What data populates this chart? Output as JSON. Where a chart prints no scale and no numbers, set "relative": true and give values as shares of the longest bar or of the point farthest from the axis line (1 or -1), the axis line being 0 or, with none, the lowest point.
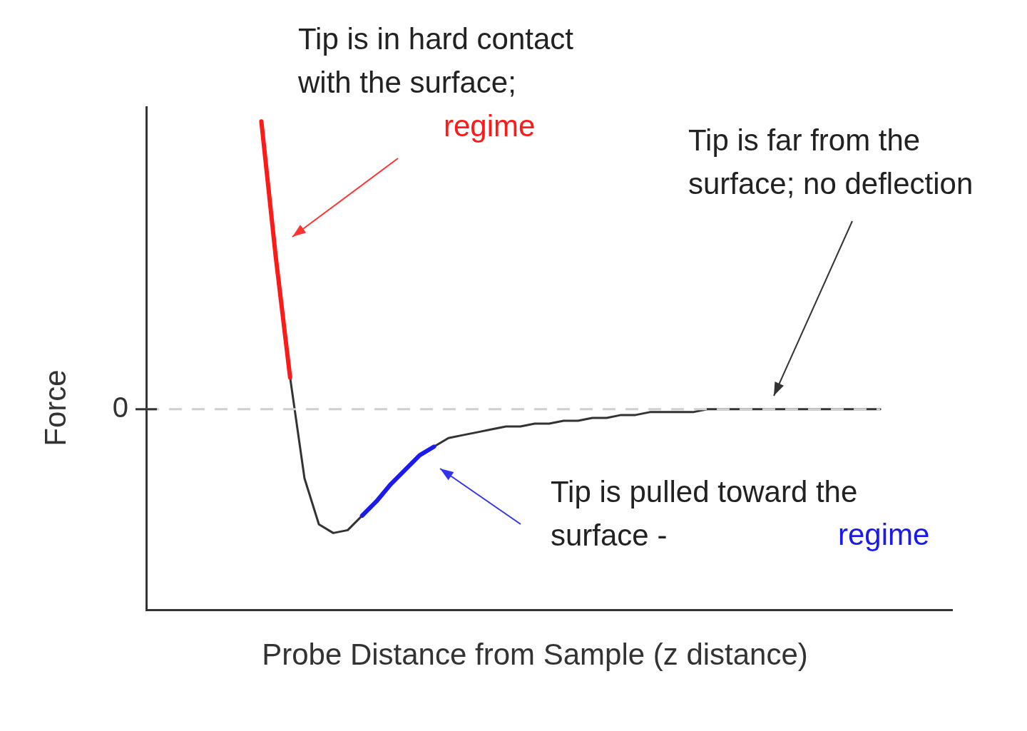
{
  "chart_data": {
    "type": "line",
    "relative": true,
    "xlabel": "Probe Distance from Sample (z distance)",
    "ylabel": "Force",
    "categories": [
      null,
      null,
      null,
      null,
      null,
      null,
      null,
      null,
      null,
      null,
      null,
      null,
      null,
      null,
      null,
      null,
      null,
      null,
      null,
      null,
      null,
      null,
      null,
      null,
      null,
      null,
      null,
      null,
      null,
      null,
      null,
      null,
      null,
      null,
      null,
      null,
      null,
      null,
      null,
      null,
      null,
      null,
      null,
      null,
      null,
      null,
      null,
      null,
      null,
      null,
      null,
      null,
      null,
      null,
      null,
      null,
      null
    ],
    "series": [
      {
        "color": "#333333",
        "values": [
          null,
          null,
          null,
          null,
          null,
          null,
          null,
          null,
          null,
          null,
          0.11,
          -0.24,
          -0.4,
          -0.43,
          -0.42,
          -0.37,
          null,
          null,
          null,
          null,
          -0.13,
          -0.1,
          -0.09,
          -0.08,
          -0.07,
          -0.06,
          -0.06,
          -0.05,
          -0.05,
          -0.04,
          -0.04,
          -0.03,
          -0.03,
          -0.02,
          -0.02,
          -0.01,
          -0.01,
          -0.01,
          -0.01,
          0,
          0,
          0,
          0,
          0,
          0,
          0,
          0,
          0,
          0,
          0,
          0,
          0,
          null,
          null,
          null,
          null,
          null
        ]
      },
      {
        "color": "#ff1a1a",
        "values": [
          null,
          null,
          null,
          null,
          null,
          null,
          null,
          null,
          1.0,
          0.53,
          0.11,
          null,
          null,
          null,
          null,
          null,
          null,
          null,
          null,
          null,
          null,
          null,
          null,
          null,
          null,
          null,
          null,
          null,
          null,
          null,
          null,
          null,
          null,
          null,
          null,
          null,
          null,
          null,
          null,
          null,
          null,
          null,
          null,
          null,
          null,
          null,
          null,
          null,
          null,
          null,
          null,
          null,
          null,
          null,
          null,
          null,
          null
        ]
      },
      {
        "color": "#1a1aee",
        "values": [
          null,
          null,
          null,
          null,
          null,
          null,
          null,
          null,
          null,
          null,
          null,
          null,
          null,
          null,
          null,
          -0.37,
          -0.32,
          -0.26,
          -0.21,
          -0.16,
          -0.13,
          null,
          null,
          null,
          null,
          null,
          null,
          null,
          null,
          null,
          null,
          null,
          null,
          null,
          null,
          null,
          null,
          null,
          null,
          null,
          null,
          null,
          null,
          null,
          null,
          null,
          null,
          null,
          null,
          null,
          null,
          null,
          null,
          null,
          null,
          null,
          null
        ]
      }
    ],
    "ref_lines": [
      {
        "axis": "y",
        "value": 0,
        "label": "0",
        "color": "#d0d0d0",
        "line_style": "dashed"
      }
    ],
    "annotations": [
      "Tip is in hard contact\nwith the surface;",
      "regime",
      "Tip is far from the\nsurface; no deflection",
      "Tip is pulled toward the\nsurface -",
      "regime"
    ],
    "legend": false,
    "marker": "none",
    "line_style": "solid"
  }
}
